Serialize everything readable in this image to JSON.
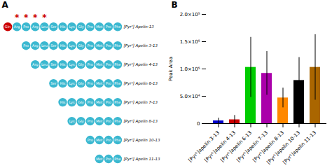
{
  "chart_data": [
    {
      "type": "diagram",
      "title": "A",
      "series": [
        {
          "name": "[Pyr¹] Apelin-13",
          "values": [
            "Gln",
            "Arg",
            "Pro",
            "Arg",
            "Leu",
            "Ser",
            "His",
            "Lys",
            "Gly",
            "Pro",
            "Met",
            "Pro",
            "Phe"
          ],
          "colors": [
            "#CC0000",
            "#3BB8D0",
            "#3BB8D0",
            "#3BB8D0",
            "#3BB8D0",
            "#3BB8D0",
            "#3BB8D0",
            "#3BB8D0",
            "#3BB8D0",
            "#3BB8D0",
            "#3BB8D0",
            "#3BB8D0",
            "#3BB8D0"
          ]
        },
        {
          "name": "[Pyr¹] Apelin 3-13",
          "values": [
            "Pro",
            "Arg",
            "Leu",
            "Ser",
            "His",
            "Lys",
            "Gly",
            "Pro",
            "Met",
            "Pro",
            "Phe"
          ],
          "colors": [
            "#3BB8D0",
            "#3BB8D0",
            "#3BB8D0",
            "#3BB8D0",
            "#3BB8D0",
            "#3BB8D0",
            "#3BB8D0",
            "#3BB8D0",
            "#3BB8D0",
            "#3BB8D0",
            "#3BB8D0"
          ]
        },
        {
          "name": "[Pyr¹] Apelin 4-13",
          "values": [
            "Arg",
            "Leu",
            "Ser",
            "His",
            "Lys",
            "Gly",
            "Pro",
            "Met",
            "Pro",
            "Phe"
          ],
          "colors": [
            "#3BB8D0",
            "#3BB8D0",
            "#3BB8D0",
            "#3BB8D0",
            "#3BB8D0",
            "#3BB8D0",
            "#3BB8D0",
            "#3BB8D0",
            "#3BB8D0",
            "#3BB8D0"
          ]
        },
        {
          "name": "[Pyr¹] Apelin 6-13",
          "values": [
            "Ser",
            "His",
            "Lys",
            "Gly",
            "Pro",
            "Met",
            "Pro",
            "Phe"
          ],
          "colors": [
            "#3BB8D0",
            "#3BB8D0",
            "#3BB8D0",
            "#3BB8D0",
            "#3BB8D0",
            "#3BB8D0",
            "#3BB8D0",
            "#3BB8D0"
          ]
        },
        {
          "name": "[Pyr¹] Apelin 7-13",
          "values": [
            "His",
            "Lys",
            "Gly",
            "Pro",
            "Met",
            "Pro",
            "Phe"
          ],
          "colors": [
            "#3BB8D0",
            "#3BB8D0",
            "#3BB8D0",
            "#3BB8D0",
            "#3BB8D0",
            "#3BB8D0",
            "#3BB8D0"
          ]
        },
        {
          "name": "[Pyr¹] Apelin 8-13",
          "values": [
            "Lys",
            "Gly",
            "Pro",
            "Met",
            "Pro",
            "Phe"
          ],
          "colors": [
            "#3BB8D0",
            "#3BB8D0",
            "#3BB8D0",
            "#3BB8D0",
            "#3BB8D0",
            "#3BB8D0"
          ]
        },
        {
          "name": "[Pyr¹] Apelin 10-13",
          "values": [
            "Pro",
            "Met",
            "Pro",
            "Phe"
          ],
          "colors": [
            "#3BB8D0",
            "#3BB8D0",
            "#3BB8D0",
            "#3BB8D0"
          ]
        },
        {
          "name": "[Pyr¹] Apelin 11-13",
          "values": [
            "Met",
            "Pro",
            "Phe"
          ],
          "colors": [
            "#3BB8D0",
            "#3BB8D0",
            "#3BB8D0"
          ]
        }
      ],
      "annotations": [
        {
          "text": "*",
          "series": 0,
          "index": 1,
          "color": "#CC0000"
        },
        {
          "text": "*",
          "series": 0,
          "index": 2,
          "color": "#CC0000"
        },
        {
          "text": "*",
          "series": 0,
          "index": 3,
          "color": "#CC0000"
        },
        {
          "text": "*",
          "series": 0,
          "index": 4,
          "color": "#CC0000"
        }
      ]
    },
    {
      "type": "bar",
      "title": "B",
      "categories": [
        "[Pyr¹]apelin 3-13",
        "[Pyr¹]apelin 4-13",
        "[Pyr¹]apelin 6-13",
        "[Pyr¹]apelin 7-13",
        "[Pyr¹]apelin 8-13",
        "[Pyr¹]apelin 10-13",
        "[Pyr¹]apelin 11-13"
      ],
      "values": [
        5000,
        7000,
        103000,
        92000,
        47000,
        79000,
        103000
      ],
      "errors": [
        5000,
        8000,
        55000,
        40000,
        18000,
        42000,
        60000
      ],
      "colors": [
        "#0000CC",
        "#CC0000",
        "#00CC00",
        "#AA00AA",
        "#FF8800",
        "#000000",
        "#AA6600"
      ],
      "ylabel": "Peak Area",
      "ylim": [
        0,
        200000
      ],
      "yticks": [
        0,
        {
          "value": 50000,
          "label": "5.0×10⁴"
        },
        {
          "value": 100000,
          "label": "1.0×10⁵"
        },
        {
          "value": 150000,
          "label": "1.5×10⁵"
        },
        {
          "value": 200000,
          "label": "2.0×10⁵"
        }
      ]
    }
  ]
}
